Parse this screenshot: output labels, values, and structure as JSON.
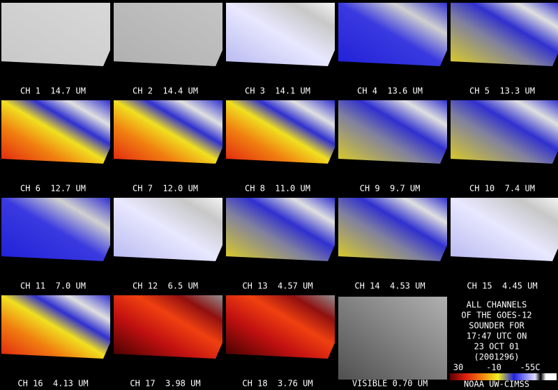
{
  "panels": [
    {
      "label": "CH 1  14.7 UM"
    },
    {
      "label": "CH 2  14.4 UM"
    },
    {
      "label": "CH 3  14.1 UM"
    },
    {
      "label": "CH 4  13.6 UM"
    },
    {
      "label": "CH 5  13.3 UM"
    },
    {
      "label": "CH 6  12.7 UM"
    },
    {
      "label": "CH 7  12.0 UM"
    },
    {
      "label": "CH 8  11.0 UM"
    },
    {
      "label": "CH 9  9.7 UM"
    },
    {
      "label": "CH 10  7.4 UM"
    },
    {
      "label": "CH 11  7.0 UM"
    },
    {
      "label": "CH 12  6.5 UM"
    },
    {
      "label": "CH 13  4.57 UM"
    },
    {
      "label": "CH 14  4.53 UM"
    },
    {
      "label": "CH 15  4.45 UM"
    },
    {
      "label": "CH 16  4.13 UM"
    },
    {
      "label": "CH 17  3.98 UM"
    },
    {
      "label": "CH 18  3.76 UM"
    },
    {
      "label": "VISIBLE 0.70 UM"
    }
  ],
  "info": {
    "lines": [
      "ALL CHANNELS",
      "OF THE GOES-12",
      "SOUNDER FOR",
      "17:47 UTC ON",
      "23 OCT 01",
      "(2001296)"
    ]
  },
  "colorbar": {
    "labels": [
      "30",
      "-10",
      "-55C"
    ]
  },
  "credit": "NOAA UW-CIMSS"
}
